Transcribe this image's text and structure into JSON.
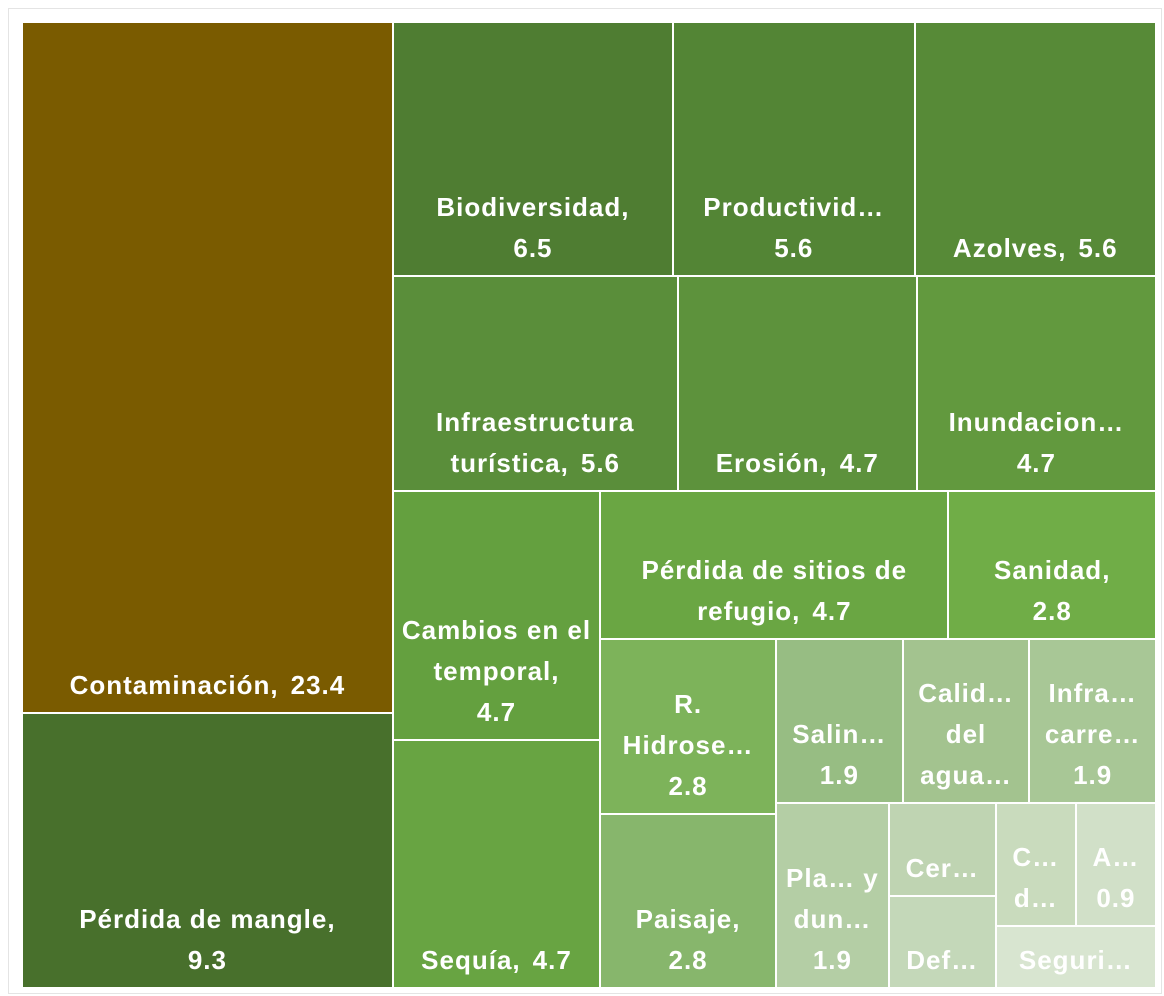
{
  "chart_data": {
    "type": "treemap",
    "categories": [
      "Contaminación",
      "Pérdida de mangle",
      "Biodiversidad",
      "Productivid…",
      "Azolves",
      "Infraestructura turística",
      "Erosión",
      "Inundacion…",
      "Cambios en el temporal",
      "Sequía",
      "Pérdida de sitios de refugio",
      "Sanidad",
      "R. Hidrose…",
      "Paisaje",
      "Salin…",
      "Calid… del agua…",
      "Infra… carre…",
      "Pla… y dun…",
      "Cer…",
      "Def…",
      "C… d…",
      "A…",
      "Seguri…"
    ],
    "values": [
      23.4,
      9.3,
      6.5,
      5.6,
      5.6,
      5.6,
      4.7,
      4.7,
      4.7,
      4.7,
      4.7,
      2.8,
      2.8,
      2.8,
      1.9,
      1.9,
      1.9,
      1.9,
      0.9,
      0.9,
      0.9,
      0.9,
      0.9
    ],
    "colors": [
      "#7a5b00",
      "#48702c",
      "#4f7d32",
      "#538535",
      "#578a37",
      "#5a8e3a",
      "#5d923c",
      "#62993e",
      "#64a03f",
      "#68a442",
      "#6aa643",
      "#70ad47",
      "#7db35a",
      "#87b66c",
      "#97bd83",
      "#a3c38f",
      "#a8c796",
      "#b4cea5",
      "#bfd4b2",
      "#c4d8b9",
      "#c9dbbd",
      "#d1e0c8",
      "#d8e5d0"
    ]
  }
}
